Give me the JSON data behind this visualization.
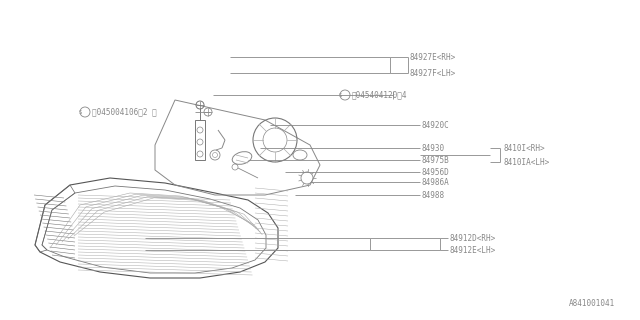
{
  "bg_color": "#ffffff",
  "line_color": "#888888",
  "text_color": "#888888",
  "fig_width": 6.4,
  "fig_height": 3.2,
  "dpi": 100,
  "footer_text": "A841001041",
  "labels": {
    "84927E_RH": "84927E<RH>",
    "84927F_LH": "84927F<LH>",
    "S_screw1": "Ⓢ045404120（4",
    "S_screw2": "Ⓢ045004106（2 ）",
    "84920C": "84920C",
    "84101_RH": "8410I<RH>",
    "84101A_LH": "8410IA<LH>",
    "84930": "84930",
    "84975B": "84975B",
    "84956D": "84956D",
    "84986A": "84986A",
    "84988": "84988",
    "84912D_RH": "84912D<RH>",
    "84912E_LH": "84912E<LH>"
  },
  "font_size": 5.5
}
